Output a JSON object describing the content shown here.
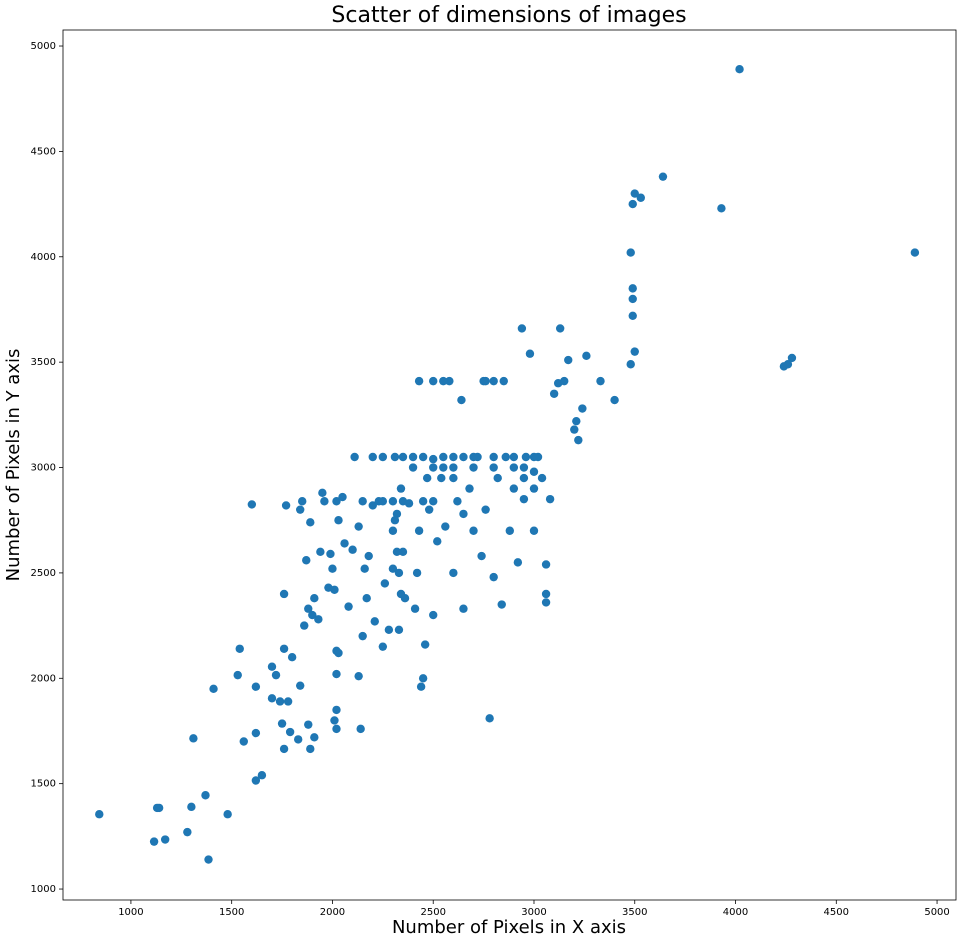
{
  "chart_data": {
    "type": "scatter",
    "title": "Scatter of dimensions of images",
    "xlabel": "Number of Pixels in X axis",
    "ylabel": "Number of Pixels in Y axis",
    "color": "#1f77b4",
    "xlim": [
      663,
      5094
    ],
    "ylim": [
      948,
      5076
    ],
    "xticks": [
      1000,
      1500,
      2000,
      2500,
      3000,
      3500,
      4000,
      4500,
      5000
    ],
    "yticks": [
      1000,
      1500,
      2000,
      2500,
      3000,
      3500,
      4000,
      4500,
      5000
    ],
    "x": [
      843,
      1130,
      1140,
      1115,
      1170,
      1280,
      1300,
      1310,
      1370,
      1385,
      1480,
      1410,
      1530,
      1540,
      1560,
      1620,
      1620,
      1650,
      1620,
      1600,
      1700,
      1700,
      1720,
      1740,
      1750,
      1760,
      1760,
      1760,
      1780,
      1790,
      1830,
      1840,
      1880,
      1890,
      1910,
      1770,
      1800,
      1840,
      1850,
      1860,
      1870,
      1880,
      1890,
      1900,
      1910,
      1930,
      1940,
      1950,
      1960,
      1980,
      1990,
      2000,
      2010,
      2020,
      2020,
      2010,
      2020,
      2020,
      2030,
      2020,
      2030,
      2050,
      2060,
      2080,
      2100,
      2110,
      2130,
      2130,
      2140,
      2150,
      2160,
      2170,
      2180,
      2200,
      2210,
      2230,
      2250,
      2260,
      2280,
      2300,
      2300,
      2310,
      2320,
      2330,
      2340,
      2350,
      2360,
      2380,
      2400,
      2410,
      2420,
      2430,
      2440,
      2450,
      2460,
      2470,
      2480,
      2500,
      2500,
      2520,
      2540,
      2550,
      2560,
      2580,
      2600,
      2620,
      2640,
      2650,
      2680,
      2700,
      2720,
      2740,
      2750,
      2760,
      2780,
      2800,
      2800,
      2820,
      2840,
      2860,
      2880,
      2900,
      2920,
      2940,
      2950,
      2960,
      2980,
      3000,
      3000,
      3020,
      3040,
      3060,
      3060,
      3060,
      3080,
      3100,
      3120,
      3130,
      3150,
      3170,
      3200,
      3210,
      3220,
      3240,
      3260,
      3330,
      3400,
      3480,
      3490,
      3490,
      3490,
      3480,
      3490,
      3500,
      3530,
      3500,
      3640,
      3930,
      4020,
      4240,
      4260,
      4280,
      4890,
      2200,
      2250,
      2350,
      2400,
      2450,
      2500,
      2600,
      2650,
      2700,
      2800,
      2900,
      3000,
      2550,
      2600,
      2700,
      2800,
      2950,
      2150,
      2250,
      2300,
      2350,
      2450,
      2500,
      2430,
      2500,
      2550,
      2760,
      2850,
      2950,
      3000,
      2320,
      2330,
      2340,
      2310,
      2600,
      2650,
      2900
    ],
    "values": [
      1355,
      1385,
      1385,
      1225,
      1235,
      1270,
      1390,
      1715,
      1445,
      1140,
      1355,
      1950,
      2015,
      2140,
      1700,
      1740,
      1515,
      1540,
      1960,
      2825,
      1905,
      2055,
      2015,
      1890,
      1785,
      1665,
      2140,
      2400,
      1890,
      1745,
      1710,
      1965,
      1780,
      1665,
      1720,
      2820,
      2100,
      2800,
      2840,
      2250,
      2560,
      2330,
      2740,
      2300,
      2380,
      2280,
      2600,
      2880,
      2840,
      2430,
      2590,
      2520,
      2420,
      2130,
      2020,
      1800,
      1760,
      1850,
      2120,
      2840,
      2750,
      2860,
      2640,
      2340,
      2610,
      3050,
      2720,
      2010,
      1760,
      2200,
      2520,
      2380,
      2580,
      2820,
      2270,
      2840,
      2150,
      2450,
      2230,
      2520,
      2700,
      3050,
      2780,
      2230,
      2900,
      2600,
      2380,
      2830,
      3000,
      2330,
      2500,
      2700,
      1960,
      2000,
      2160,
      2950,
      2800,
      3000,
      2300,
      2650,
      2950,
      3050,
      2720,
      3410,
      2500,
      2840,
      3320,
      2330,
      2900,
      2700,
      3050,
      2580,
      3410,
      2800,
      1810,
      2480,
      3410,
      2950,
      2350,
      3050,
      2700,
      3000,
      2550,
      3660,
      2850,
      3050,
      3540,
      2900,
      2700,
      3050,
      2950,
      2360,
      2400,
      2540,
      2850,
      3350,
      3400,
      3660,
      3410,
      3510,
      3180,
      3220,
      3130,
      3280,
      3530,
      3410,
      3320,
      3490,
      3850,
      3800,
      3720,
      4020,
      4250,
      4300,
      4280,
      3550,
      4380,
      4230,
      4890,
      3480,
      3490,
      3520,
      4020,
      3050,
      3050,
      3050,
      3050,
      3050,
      3040,
      3050,
      3050,
      3050,
      3050,
      3050,
      3050,
      3000,
      3000,
      3000,
      3000,
      3000,
      2840,
      2840,
      2840,
      2840,
      2840,
      2840,
      3410,
      3410,
      3410,
      3410,
      3410,
      2950,
      2980,
      2600,
      2500,
      2400,
      2750,
      2950,
      2780,
      2900
    ]
  }
}
